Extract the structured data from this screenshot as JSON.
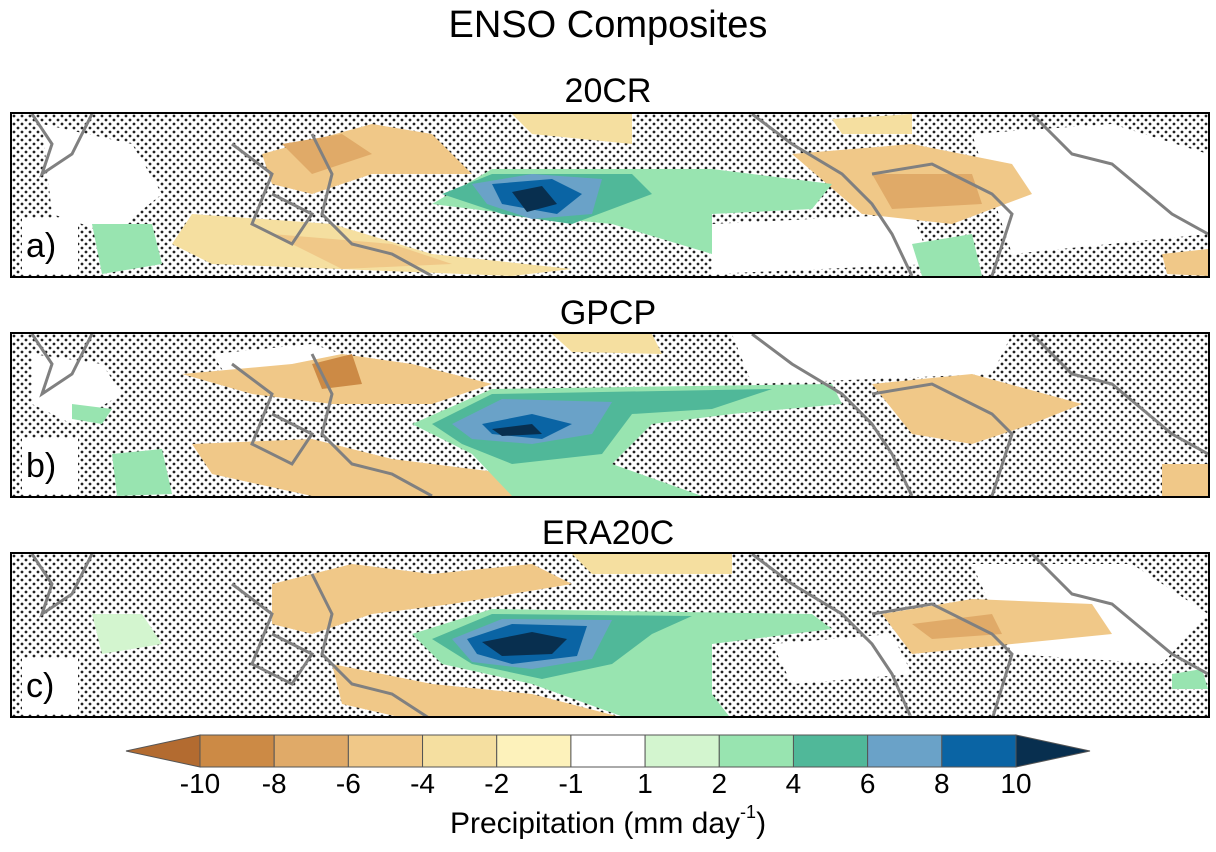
{
  "title": "ENSO Composites",
  "panels": [
    {
      "title": "20CR",
      "letter": "a)"
    },
    {
      "title": "GPCP",
      "letter": "b)"
    },
    {
      "title": "ERA20C",
      "letter": "c)"
    }
  ],
  "colorbar": {
    "label_main": "Precipitation (mm day",
    "label_sup": "-1",
    "label_end": ")",
    "ticks": [
      "-10",
      "-8",
      "-6",
      "-4",
      "-2",
      "-1",
      "1",
      "2",
      "4",
      "6",
      "8",
      "10"
    ],
    "colors": [
      "#b36b30",
      "#cc8a45",
      "#e0aa68",
      "#f0c888",
      "#f5dfa0",
      "#fdf2bb",
      "#ffffff",
      "#d3f5cf",
      "#98e4b0",
      "#50b899",
      "#6aa2c8",
      "#0a64a4",
      "#082f4f"
    ]
  },
  "colors": {
    "coast": "#808080",
    "stipple": "#222222"
  }
}
